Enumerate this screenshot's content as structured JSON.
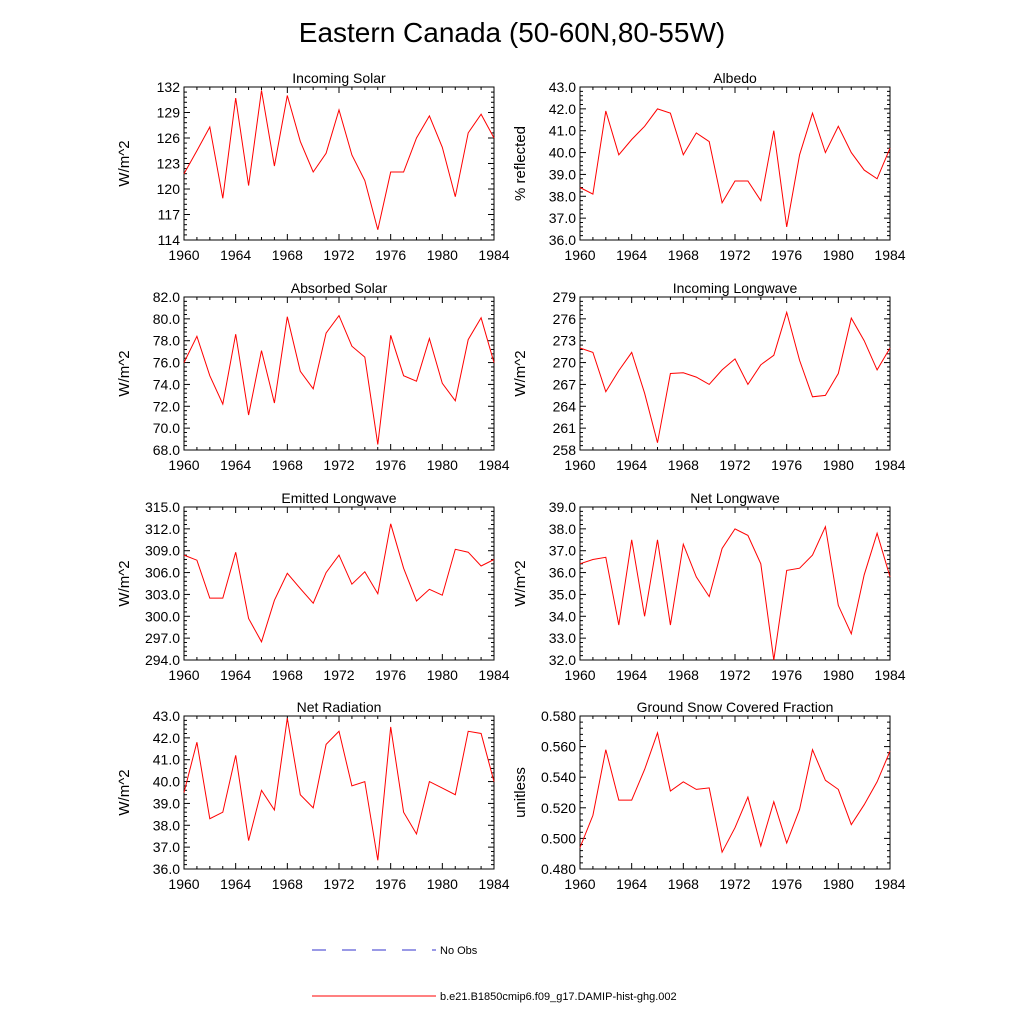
{
  "figure": {
    "title": "Eastern Canada (50-60N,80-55W)"
  },
  "legend": {
    "items": [
      {
        "label": "No Obs",
        "color": "#3333cc",
        "style": "dashed"
      },
      {
        "label": "b.e21.B1850cmip6.f09_g17.DAMIP-hist-ghg.002",
        "color": "#ff0000",
        "style": "solid"
      }
    ]
  },
  "chart_data": [
    {
      "type": "line",
      "title": "Incoming Solar",
      "xlabel": "",
      "ylabel": "W/m^2",
      "xlim": [
        1960,
        1984
      ],
      "ylim": [
        114,
        132
      ],
      "xticks": [
        "1960",
        "1964",
        "1968",
        "1972",
        "1976",
        "1980",
        "1984"
      ],
      "yticks": [
        "114",
        "117",
        "120",
        "123",
        "126",
        "129",
        "132"
      ],
      "x": [
        1960,
        1961,
        1962,
        1963,
        1964,
        1965,
        1966,
        1967,
        1968,
        1969,
        1970,
        1971,
        1972,
        1973,
        1974,
        1975,
        1976,
        1977,
        1978,
        1979,
        1980,
        1981,
        1982,
        1983,
        1984
      ],
      "series": [
        {
          "name": "b.e21.B1850cmip6.f09_g17.DAMIP-hist-ghg.002",
          "color": "#ff0000",
          "values": [
            121.8,
            124.5,
            127.3,
            118.9,
            130.7,
            120.4,
            131.6,
            122.7,
            131.0,
            125.6,
            122.0,
            124.2,
            129.3,
            124.0,
            121.0,
            115.2,
            122.0,
            122.0,
            126.0,
            128.6,
            124.9,
            119.1,
            126.6,
            128.8,
            126.0
          ]
        }
      ]
    },
    {
      "type": "line",
      "title": "Albedo",
      "xlabel": "",
      "ylabel": "% reflected",
      "xlim": [
        1960,
        1984
      ],
      "ylim": [
        36.0,
        43.0
      ],
      "xticks": [
        "1960",
        "1964",
        "1968",
        "1972",
        "1976",
        "1980",
        "1984"
      ],
      "yticks": [
        "36.0",
        "37.0",
        "38.0",
        "39.0",
        "40.0",
        "41.0",
        "42.0",
        "43.0"
      ],
      "x": [
        1960,
        1961,
        1962,
        1963,
        1964,
        1965,
        1966,
        1967,
        1968,
        1969,
        1970,
        1971,
        1972,
        1973,
        1974,
        1975,
        1976,
        1977,
        1978,
        1979,
        1980,
        1981,
        1982,
        1983,
        1984
      ],
      "series": [
        {
          "name": "b.e21.B1850cmip6.f09_g17.DAMIP-hist-ghg.002",
          "color": "#ff0000",
          "values": [
            38.4,
            38.1,
            41.9,
            39.9,
            40.6,
            41.2,
            42.0,
            41.8,
            39.9,
            40.9,
            40.5,
            37.7,
            38.7,
            38.7,
            37.8,
            41.0,
            36.6,
            39.9,
            41.8,
            40.0,
            41.2,
            40.0,
            39.2,
            38.8,
            40.2
          ]
        }
      ]
    },
    {
      "type": "line",
      "title": "Absorbed Solar",
      "xlabel": "",
      "ylabel": "W/m^2",
      "xlim": [
        1960,
        1984
      ],
      "ylim": [
        68.0,
        82.0
      ],
      "xticks": [
        "1960",
        "1964",
        "1968",
        "1972",
        "1976",
        "1980",
        "1984"
      ],
      "yticks": [
        "68.0",
        "70.0",
        "72.0",
        "74.0",
        "76.0",
        "78.0",
        "80.0",
        "82.0"
      ],
      "x": [
        1960,
        1961,
        1962,
        1963,
        1964,
        1965,
        1966,
        1967,
        1968,
        1969,
        1970,
        1971,
        1972,
        1973,
        1974,
        1975,
        1976,
        1977,
        1978,
        1979,
        1980,
        1981,
        1982,
        1983,
        1984
      ],
      "series": [
        {
          "name": "b.e21.B1850cmip6.f09_g17.DAMIP-hist-ghg.002",
          "color": "#ff0000",
          "values": [
            76.0,
            78.4,
            74.8,
            72.2,
            78.6,
            71.2,
            77.1,
            72.3,
            80.2,
            75.2,
            73.6,
            78.7,
            80.3,
            77.5,
            76.5,
            68.5,
            78.5,
            74.8,
            74.3,
            78.2,
            74.1,
            72.5,
            78.1,
            80.1,
            76.0
          ]
        }
      ]
    },
    {
      "type": "line",
      "title": "Incoming Longwave",
      "xlabel": "",
      "ylabel": "W/m^2",
      "xlim": [
        1960,
        1984
      ],
      "ylim": [
        258,
        279
      ],
      "xticks": [
        "1960",
        "1964",
        "1968",
        "1972",
        "1976",
        "1980",
        "1984"
      ],
      "yticks": [
        "258",
        "261",
        "264",
        "267",
        "270",
        "273",
        "276",
        "279"
      ],
      "x": [
        1960,
        1961,
        1962,
        1963,
        1964,
        1965,
        1966,
        1967,
        1968,
        1969,
        1970,
        1971,
        1972,
        1973,
        1974,
        1975,
        1976,
        1977,
        1978,
        1979,
        1980,
        1981,
        1982,
        1983,
        1984
      ],
      "series": [
        {
          "name": "b.e21.B1850cmip6.f09_g17.DAMIP-hist-ghg.002",
          "color": "#ff0000",
          "values": [
            272.0,
            271.4,
            266.0,
            268.9,
            271.4,
            265.8,
            259.0,
            268.5,
            268.6,
            268.0,
            267.0,
            269.0,
            270.5,
            267.0,
            269.7,
            271.0,
            276.9,
            270.3,
            265.3,
            265.5,
            268.5,
            276.1,
            273.0,
            269.0,
            272.0
          ]
        }
      ]
    },
    {
      "type": "line",
      "title": "Emitted Longwave",
      "xlabel": "",
      "ylabel": "W/m^2",
      "xlim": [
        1960,
        1984
      ],
      "ylim": [
        294.0,
        315.0
      ],
      "xticks": [
        "1960",
        "1964",
        "1968",
        "1972",
        "1976",
        "1980",
        "1984"
      ],
      "yticks": [
        "294.0",
        "297.0",
        "300.0",
        "303.0",
        "306.0",
        "309.0",
        "312.0",
        "315.0"
      ],
      "x": [
        1960,
        1961,
        1962,
        1963,
        1964,
        1965,
        1966,
        1967,
        1968,
        1969,
        1970,
        1971,
        1972,
        1973,
        1974,
        1975,
        1976,
        1977,
        1978,
        1979,
        1980,
        1981,
        1982,
        1983,
        1984
      ],
      "series": [
        {
          "name": "b.e21.B1850cmip6.f09_g17.DAMIP-hist-ghg.002",
          "color": "#ff0000",
          "values": [
            308.4,
            307.7,
            302.5,
            302.5,
            308.8,
            299.7,
            296.5,
            302.2,
            305.9,
            303.8,
            301.8,
            306.0,
            308.4,
            304.4,
            306.1,
            303.1,
            312.7,
            306.6,
            302.1,
            303.7,
            302.9,
            309.2,
            308.8,
            306.9,
            307.8
          ]
        }
      ]
    },
    {
      "type": "line",
      "title": "Net Longwave",
      "xlabel": "",
      "ylabel": "W/m^2",
      "xlim": [
        1960,
        1984
      ],
      "ylim": [
        32.0,
        39.0
      ],
      "xticks": [
        "1960",
        "1964",
        "1968",
        "1972",
        "1976",
        "1980",
        "1984"
      ],
      "yticks": [
        "32.0",
        "33.0",
        "34.0",
        "35.0",
        "36.0",
        "37.0",
        "38.0",
        "39.0"
      ],
      "x": [
        1960,
        1961,
        1962,
        1963,
        1964,
        1965,
        1966,
        1967,
        1968,
        1969,
        1970,
        1971,
        1972,
        1973,
        1974,
        1975,
        1976,
        1977,
        1978,
        1979,
        1980,
        1981,
        1982,
        1983,
        1984
      ],
      "series": [
        {
          "name": "b.e21.B1850cmip6.f09_g17.DAMIP-hist-ghg.002",
          "color": "#ff0000",
          "values": [
            36.4,
            36.6,
            36.7,
            33.6,
            37.5,
            34.0,
            37.5,
            33.6,
            37.3,
            35.8,
            34.9,
            37.1,
            38.0,
            37.7,
            36.4,
            32.0,
            36.1,
            36.2,
            36.8,
            38.1,
            34.5,
            33.2,
            35.9,
            37.8,
            35.8
          ]
        }
      ]
    },
    {
      "type": "line",
      "title": "Net Radiation",
      "xlabel": "",
      "ylabel": "W/m^2",
      "xlim": [
        1960,
        1984
      ],
      "ylim": [
        36.0,
        43.0
      ],
      "xticks": [
        "1960",
        "1964",
        "1968",
        "1972",
        "1976",
        "1980",
        "1984"
      ],
      "yticks": [
        "36.0",
        "37.0",
        "38.0",
        "39.0",
        "40.0",
        "41.0",
        "42.0",
        "43.0"
      ],
      "x": [
        1960,
        1961,
        1962,
        1963,
        1964,
        1965,
        1966,
        1967,
        1968,
        1969,
        1970,
        1971,
        1972,
        1973,
        1974,
        1975,
        1976,
        1977,
        1978,
        1979,
        1980,
        1981,
        1982,
        1983,
        1984
      ],
      "series": [
        {
          "name": "b.e21.B1850cmip6.f09_g17.DAMIP-hist-ghg.002",
          "color": "#ff0000",
          "values": [
            39.5,
            41.8,
            38.3,
            38.6,
            41.2,
            37.3,
            39.6,
            38.7,
            42.9,
            39.4,
            38.8,
            41.7,
            42.3,
            39.8,
            40.0,
            36.4,
            42.5,
            38.6,
            37.6,
            40.0,
            39.7,
            39.4,
            42.3,
            42.2,
            40.0
          ]
        }
      ]
    },
    {
      "type": "line",
      "title": "Ground Snow Covered Fraction",
      "xlabel": "",
      "ylabel": "unitless",
      "xlim": [
        1960,
        1984
      ],
      "ylim": [
        0.48,
        0.58
      ],
      "xticks": [
        "1960",
        "1964",
        "1968",
        "1972",
        "1976",
        "1980",
        "1984"
      ],
      "yticks": [
        "0.480",
        "0.500",
        "0.520",
        "0.540",
        "0.560",
        "0.580"
      ],
      "x": [
        1960,
        1961,
        1962,
        1963,
        1964,
        1965,
        1966,
        1967,
        1968,
        1969,
        1970,
        1971,
        1972,
        1973,
        1974,
        1975,
        1976,
        1977,
        1978,
        1979,
        1980,
        1981,
        1982,
        1983,
        1984
      ],
      "series": [
        {
          "name": "b.e21.B1850cmip6.f09_g17.DAMIP-hist-ghg.002",
          "color": "#ff0000",
          "values": [
            0.494,
            0.515,
            0.558,
            0.525,
            0.525,
            0.545,
            0.569,
            0.531,
            0.537,
            0.532,
            0.533,
            0.491,
            0.507,
            0.527,
            0.495,
            0.524,
            0.497,
            0.519,
            0.558,
            0.538,
            0.532,
            0.509,
            0.522,
            0.537,
            0.557
          ]
        }
      ]
    }
  ]
}
